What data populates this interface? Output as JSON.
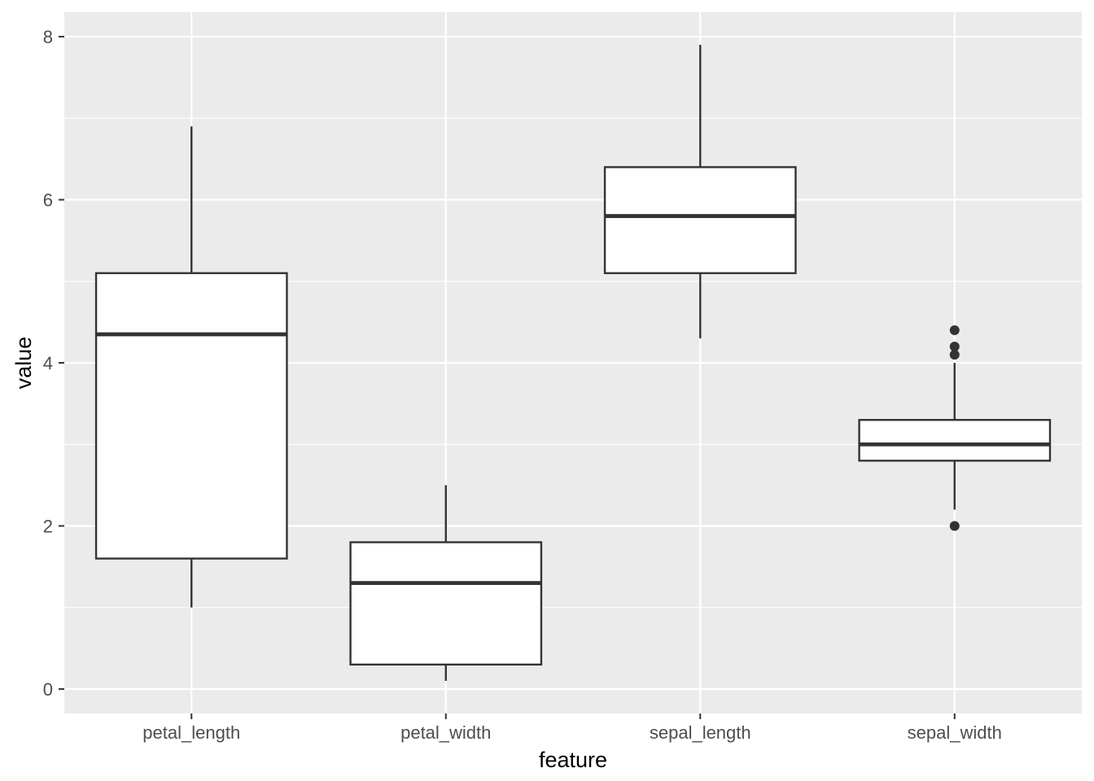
{
  "chart_data": {
    "type": "boxplot",
    "title": "",
    "xlabel": "feature",
    "ylabel": "value",
    "categories": [
      "petal_length",
      "petal_width",
      "sepal_length",
      "sepal_width"
    ],
    "ylim": [
      -0.3,
      8.3
    ],
    "yticks": [
      0,
      2,
      4,
      6,
      8
    ],
    "ytick_labels": [
      "0",
      "2",
      "4",
      "6",
      "8"
    ],
    "grid": true,
    "legend": "none",
    "boxes": [
      {
        "category": "petal_length",
        "whisker_low": 1.0,
        "q1": 1.6,
        "median": 4.35,
        "q3": 5.1,
        "whisker_high": 6.9,
        "outliers": []
      },
      {
        "category": "petal_width",
        "whisker_low": 0.1,
        "q1": 0.3,
        "median": 1.3,
        "q3": 1.8,
        "whisker_high": 2.5,
        "outliers": []
      },
      {
        "category": "sepal_length",
        "whisker_low": 4.3,
        "q1": 5.1,
        "median": 5.8,
        "q3": 6.4,
        "whisker_high": 7.9,
        "outliers": []
      },
      {
        "category": "sepal_width",
        "whisker_low": 2.2,
        "q1": 2.8,
        "median": 3.0,
        "q3": 3.3,
        "whisker_high": 4.0,
        "outliers": [
          2.0,
          4.1,
          4.2,
          4.4
        ]
      }
    ],
    "colors": {
      "panel_background": "#ebebeb",
      "grid": "#ffffff",
      "box_fill": "#ffffff",
      "box_stroke": "#333333",
      "tick_text": "#4d4d4d",
      "axis_title_text": "#000000"
    }
  }
}
